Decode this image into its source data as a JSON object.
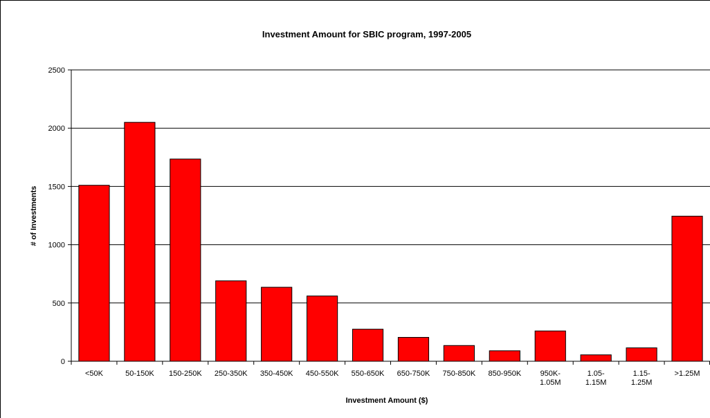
{
  "chart_data": {
    "type": "bar",
    "title": "Investment Amount for SBIC program, 1997-2005",
    "xlabel": "Investment Amount ($)",
    "ylabel": "# of Investments",
    "categories": [
      [
        "<50K"
      ],
      [
        "50-150K"
      ],
      [
        "150-250K"
      ],
      [
        "250-350K"
      ],
      [
        "350-450K"
      ],
      [
        "450-550K"
      ],
      [
        "550-650K"
      ],
      [
        "650-750K"
      ],
      [
        "750-850K"
      ],
      [
        "850-950K"
      ],
      [
        "950K-",
        "1.05M"
      ],
      [
        "1.05-",
        "1.15M"
      ],
      [
        "1.15-",
        "1.25M"
      ],
      [
        ">1.25M"
      ]
    ],
    "values": [
      1510,
      2050,
      1735,
      690,
      635,
      560,
      275,
      205,
      135,
      90,
      260,
      55,
      115,
      1245
    ],
    "ylim": [
      0,
      2500
    ],
    "yticks": [
      0,
      500,
      1000,
      1500,
      2000,
      2500
    ],
    "grid": true,
    "legend": "none",
    "bar_color": "#ff0000",
    "bar_edge_color": "#000000"
  }
}
